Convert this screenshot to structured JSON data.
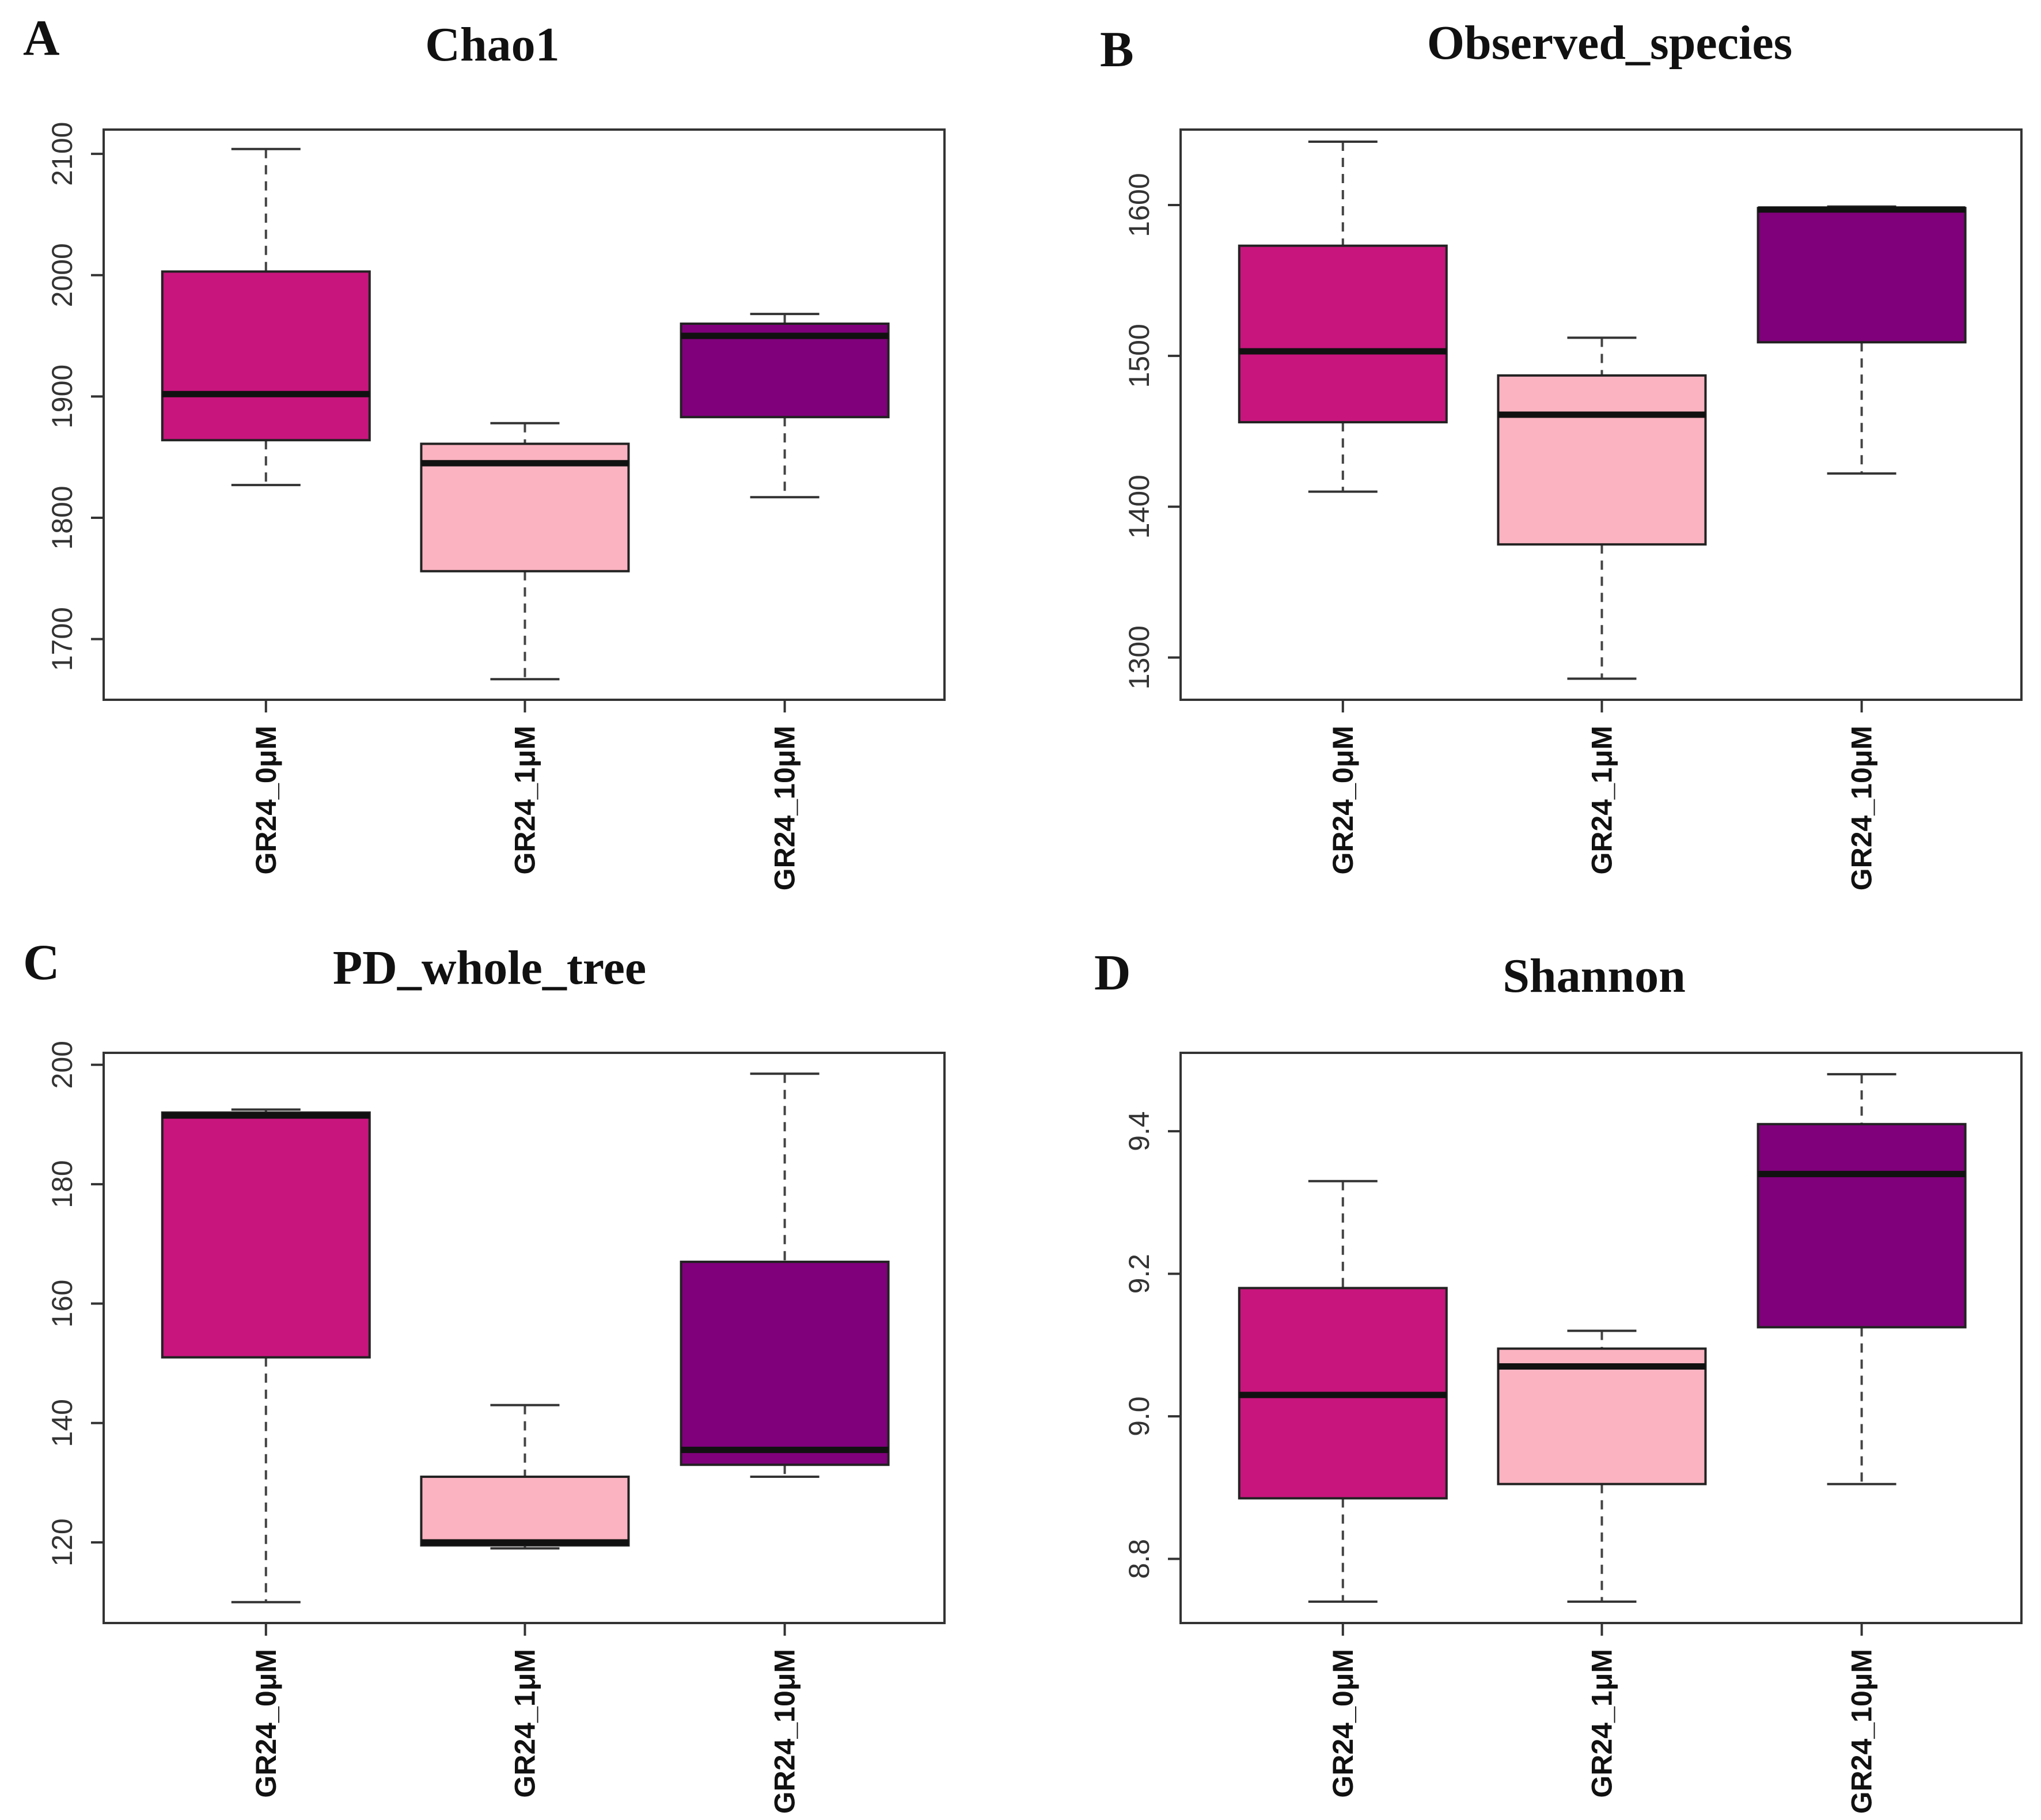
{
  "colors": {
    "GR24_0μM": "#c8157d",
    "GR24_1μM": "#fbb3c1",
    "GR24_10μM": "#7f007a"
  },
  "chart_data": [
    {
      "type": "boxplot",
      "panel": "A",
      "title": "Chao1",
      "categories": [
        "GR24_0μM",
        "GR24_1μM",
        "GR24_10μM"
      ],
      "ylim": [
        1650,
        2120
      ],
      "yticks": [
        "1700",
        "1800",
        "1900",
        "2000",
        "2100"
      ],
      "boxes": [
        {
          "min": 1827,
          "q1": 1864,
          "median": 1902,
          "q3": 2003,
          "max": 2104
        },
        {
          "min": 1667,
          "q1": 1756,
          "median": 1845,
          "q3": 1861,
          "max": 1878
        },
        {
          "min": 1817,
          "q1": 1883,
          "median": 1950,
          "q3": 1960,
          "max": 1968
        }
      ]
    },
    {
      "type": "boxplot",
      "panel": "B",
      "title": "Observed_species",
      "categories": [
        "GR24_0μM",
        "GR24_1μM",
        "GR24_10μM"
      ],
      "ylim": [
        1272,
        1650
      ],
      "yticks": [
        "1300",
        "1400",
        "1500",
        "1600"
      ],
      "boxes": [
        {
          "min": 1410,
          "q1": 1456,
          "median": 1503,
          "q3": 1573,
          "max": 1642
        },
        {
          "min": 1286,
          "q1": 1375,
          "median": 1461,
          "q3": 1487,
          "max": 1512
        },
        {
          "min": 1422,
          "q1": 1509,
          "median": 1597,
          "q3": 1598,
          "max": 1599
        }
      ]
    },
    {
      "type": "boxplot",
      "panel": "C",
      "title": "PD_whole_tree",
      "categories": [
        "GR24_0μM",
        "GR24_1μM",
        "GR24_10μM"
      ],
      "ylim": [
        106.5,
        202
      ],
      "yticks": [
        "120",
        "140",
        "160",
        "180",
        "200"
      ],
      "boxes": [
        {
          "min": 110,
          "q1": 151,
          "median": 191.5,
          "q3": 192,
          "max": 192.5
        },
        {
          "min": 119,
          "q1": 119.5,
          "median": 120,
          "q3": 131,
          "max": 143
        },
        {
          "min": 131,
          "q1": 133,
          "median": 135.5,
          "q3": 167,
          "max": 198.5
        }
      ]
    },
    {
      "type": "boxplot",
      "panel": "D",
      "title": "Shannon",
      "categories": [
        "GR24_0μM",
        "GR24_1μM",
        "GR24_10μM"
      ],
      "ylim": [
        8.71,
        9.51
      ],
      "yticks": [
        "8.8",
        "9.0",
        "9.2",
        "9.4"
      ],
      "boxes": [
        {
          "min": 8.74,
          "q1": 8.885,
          "median": 9.03,
          "q3": 9.18,
          "max": 9.33
        },
        {
          "min": 8.74,
          "q1": 8.905,
          "median": 9.07,
          "q3": 9.095,
          "max": 9.12
        },
        {
          "min": 8.905,
          "q1": 9.125,
          "median": 9.34,
          "q3": 9.41,
          "max": 9.48
        }
      ]
    }
  ]
}
